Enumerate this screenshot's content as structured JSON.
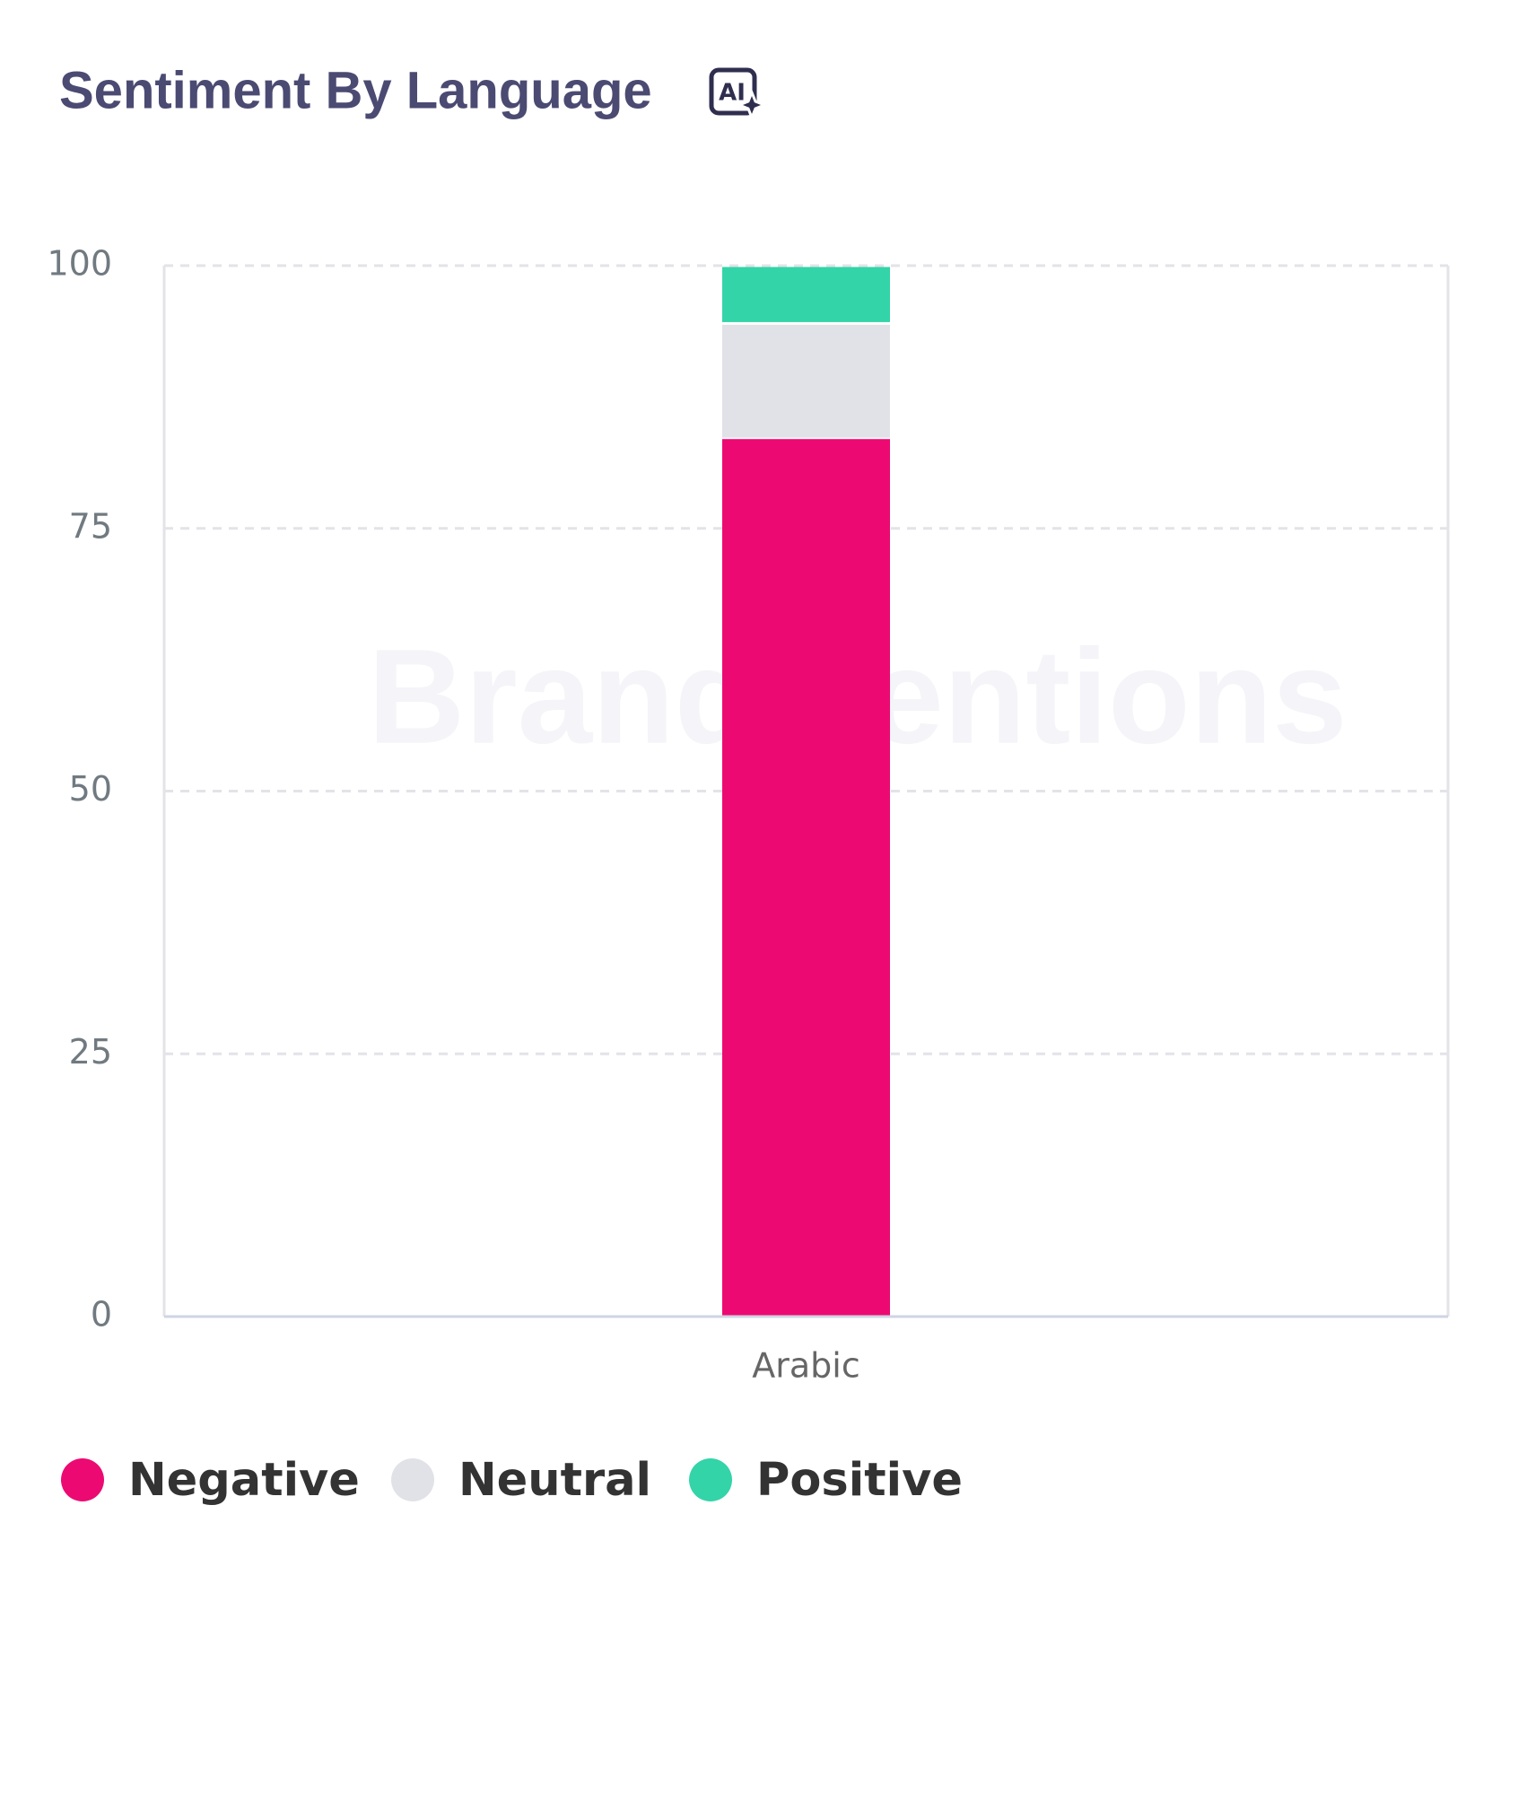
{
  "chart_data": {
    "type": "stacked_bar",
    "title": "Sentiment By Language",
    "badge": "AI",
    "watermark": "BrandMentions",
    "categories": [
      "Arabic"
    ],
    "series": [
      {
        "name": "Negative",
        "color": "#ec0a72",
        "values": [
          83.5
        ]
      },
      {
        "name": "Neutral",
        "color": "#e1e2e7",
        "values": [
          11
        ]
      },
      {
        "name": "Positive",
        "color": "#33d4a8",
        "values": [
          5.5
        ]
      }
    ],
    "ylim": [
      0,
      100
    ],
    "yticks": [
      0,
      25,
      50,
      75,
      100
    ],
    "grid": true,
    "legend": "bottom-left"
  }
}
